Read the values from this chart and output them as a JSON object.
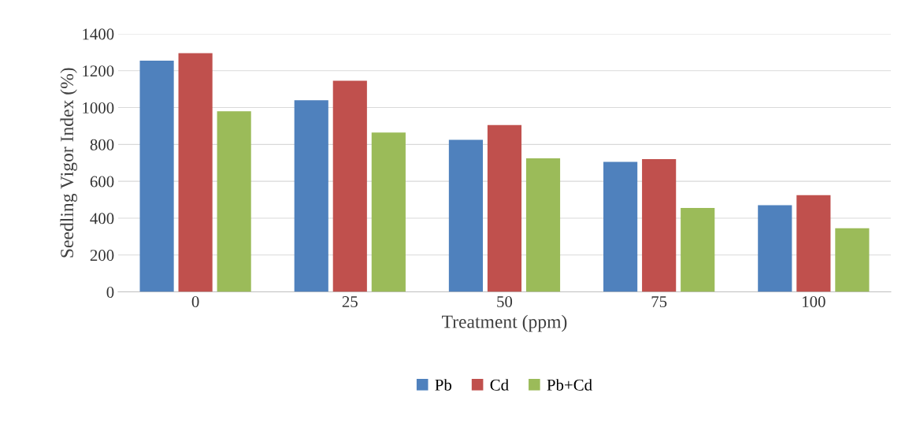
{
  "chart_data": {
    "type": "bar",
    "xlabel": "Treatment (ppm)",
    "ylabel": "Seedling Vigor Index (%)",
    "categories": [
      "0",
      "25",
      "50",
      "75",
      "100"
    ],
    "series": [
      {
        "name": "Pb",
        "color": "#4f81bd",
        "values": [
          1255,
          1040,
          825,
          705,
          470
        ]
      },
      {
        "name": "Cd",
        "color": "#c0504d",
        "values": [
          1295,
          1145,
          905,
          720,
          525
        ]
      },
      {
        "name": "Pb+Cd",
        "color": "#9bbb59",
        "values": [
          980,
          865,
          725,
          455,
          345
        ]
      }
    ],
    "ylim": [
      0,
      1400
    ],
    "yticks": [
      0,
      200,
      400,
      600,
      800,
      1000,
      1200,
      1400
    ],
    "grid": "y",
    "legend": "bottom"
  }
}
